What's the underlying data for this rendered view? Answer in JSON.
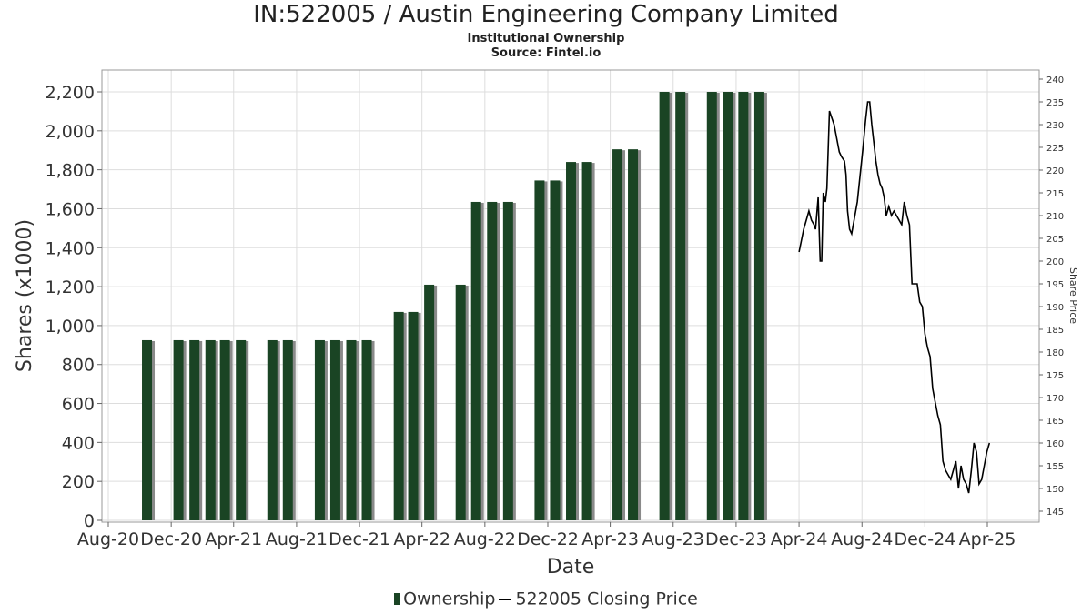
{
  "title": "IN:522005 / Austin Engineering Company Limited",
  "subtitle": "Institutional Ownership",
  "source": "Source: Fintel.io",
  "legend": {
    "ownership": "Ownership",
    "price": "522005 Closing Price"
  },
  "colors": {
    "bar": "#1a4424",
    "bar_shadow": "#8a8a8a",
    "line": "#000000",
    "grid": "#dddddd"
  },
  "chart_data": {
    "type": "bar",
    "xlabel": "Date",
    "ylabel": "Shares (x1000)",
    "y2label": "Share Price",
    "x_tick_labels": [
      "Aug-20",
      "Dec-20",
      "Apr-21",
      "Aug-21",
      "Dec-21",
      "Apr-22",
      "Aug-22",
      "Dec-22",
      "Apr-23",
      "Aug-23",
      "Dec-23",
      "Apr-24",
      "Aug-24",
      "Dec-24",
      "Apr-25"
    ],
    "y_ticks": [
      "0",
      "200",
      "400",
      "600",
      "800",
      "1,000",
      "1,200",
      "1,400",
      "1,600",
      "1,800",
      "2,000",
      "2,200"
    ],
    "y2_ticks": [
      "145",
      "150",
      "155",
      "160",
      "165",
      "170",
      "175",
      "180",
      "185",
      "190",
      "195",
      "200",
      "205",
      "210",
      "215",
      "220",
      "225",
      "230",
      "235",
      "240"
    ],
    "ylim": [
      0,
      2300
    ],
    "y2lim": [
      143,
      241
    ],
    "grid": true,
    "legend_position": "bottom",
    "series": [
      {
        "name": "Ownership",
        "kind": "bar",
        "x": [
          "2020-10-15",
          "2020-12-15",
          "2021-01-15",
          "2021-02-15",
          "2021-03-15",
          "2021-04-15",
          "2021-06-15",
          "2021-07-15",
          "2021-09-15",
          "2021-10-15",
          "2021-11-15",
          "2021-12-15",
          "2022-02-15",
          "2022-03-15",
          "2022-04-15",
          "2022-06-15",
          "2022-07-15",
          "2022-08-15",
          "2022-09-15",
          "2022-11-15",
          "2022-12-15",
          "2023-01-15",
          "2023-02-15",
          "2023-04-15",
          "2023-05-15",
          "2023-07-15",
          "2023-08-15",
          "2023-10-15",
          "2023-11-15",
          "2023-12-15",
          "2024-01-15"
        ],
        "values": [
          925,
          925,
          925,
          925,
          925,
          925,
          925,
          925,
          925,
          925,
          925,
          925,
          1070,
          1070,
          1210,
          1210,
          1635,
          1635,
          1635,
          1745,
          1745,
          1840,
          1840,
          1905,
          1905,
          2200,
          2200,
          2200,
          2200,
          2200,
          2200
        ]
      },
      {
        "name": "522005 Closing Price",
        "kind": "line",
        "axis": "right",
        "x": [
          "2024-04-01",
          "2024-04-10",
          "2024-04-20",
          "2024-04-25",
          "2024-04-30",
          "2024-05-03",
          "2024-05-08",
          "2024-05-12",
          "2024-05-15",
          "2024-05-18",
          "2024-05-22",
          "2024-05-25",
          "2024-05-30",
          "2024-06-08",
          "2024-06-18",
          "2024-06-22",
          "2024-06-28",
          "2024-07-01",
          "2024-07-04",
          "2024-07-08",
          "2024-07-12",
          "2024-07-23",
          "2024-08-03",
          "2024-08-08",
          "2024-08-12",
          "2024-08-16",
          "2024-08-20",
          "2024-08-24",
          "2024-08-28",
          "2024-09-01",
          "2024-09-05",
          "2024-09-09",
          "2024-09-13",
          "2024-09-17",
          "2024-09-22",
          "2024-09-27",
          "2024-10-02",
          "2024-10-07",
          "2024-10-12",
          "2024-10-17",
          "2024-10-22",
          "2024-10-27",
          "2024-11-01",
          "2024-11-06",
          "2024-11-11",
          "2024-11-16",
          "2024-11-21",
          "2024-11-26",
          "2024-12-01",
          "2024-12-06",
          "2024-12-11",
          "2024-12-16",
          "2024-12-21",
          "2024-12-26",
          "2024-12-31",
          "2025-01-05",
          "2025-01-10",
          "2025-01-15",
          "2025-01-20",
          "2025-01-25",
          "2025-01-30",
          "2025-02-04",
          "2025-02-09",
          "2025-02-14",
          "2025-02-19",
          "2025-02-24",
          "2025-03-01",
          "2025-03-06",
          "2025-03-11",
          "2025-03-16",
          "2025-03-21",
          "2025-03-26",
          "2025-03-31",
          "2025-04-05"
        ],
        "values": [
          202,
          207,
          211,
          209,
          208,
          207,
          214,
          200,
          200,
          215,
          213,
          216,
          233,
          230,
          224,
          223,
          222,
          219,
          211,
          207,
          206,
          213,
          225,
          231,
          235,
          235,
          230,
          226,
          222,
          219,
          217,
          216,
          214,
          210,
          212,
          210,
          211,
          210,
          209,
          208,
          213,
          210,
          208,
          195,
          195,
          195,
          191,
          190,
          184,
          181,
          179,
          172,
          169,
          166,
          164,
          156,
          154,
          153,
          152,
          154,
          156,
          150,
          155,
          152,
          151,
          149,
          154,
          160,
          158,
          151,
          152,
          155,
          158,
          160
        ]
      }
    ]
  }
}
